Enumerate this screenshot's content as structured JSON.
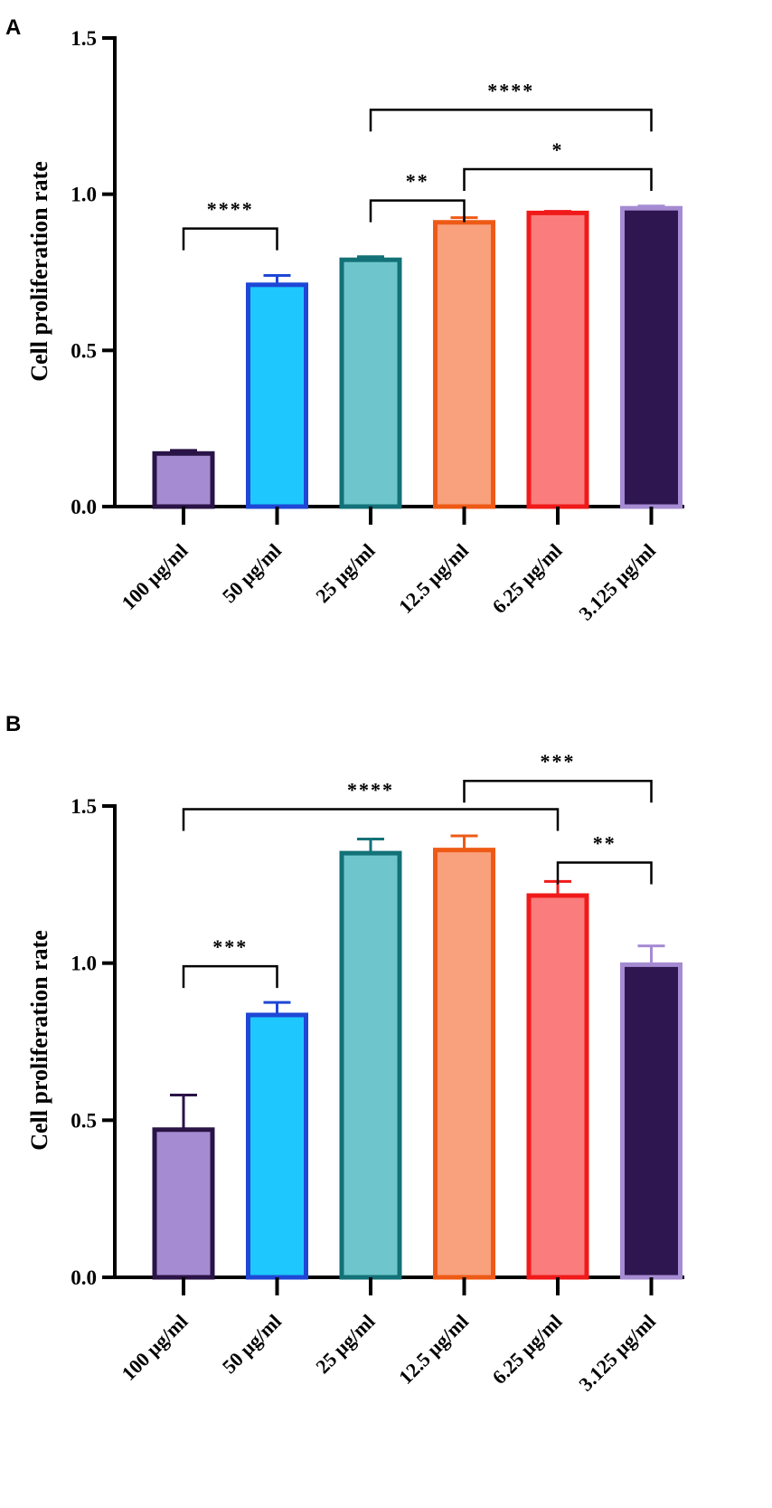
{
  "figure": {
    "panels": [
      "A",
      "B"
    ]
  },
  "chart_data": [
    {
      "panel": "A",
      "type": "bar",
      "title": "",
      "xlabel": "",
      "ylabel": "Cell proliferation rate",
      "ylim": [
        0,
        1.5
      ],
      "yticks": [
        0.0,
        0.5,
        1.0,
        1.5
      ],
      "ytick_labels": [
        "0.0",
        "0.5",
        "1.0",
        "1.5"
      ],
      "categories": [
        "100 μg/ml",
        "50 μg/ml",
        "25 μg/ml",
        "12.5 μg/ml",
        "6.25 μg/ml",
        "3.125 μg/ml"
      ],
      "values": [
        0.17,
        0.71,
        0.79,
        0.91,
        0.94,
        0.955
      ],
      "errors": [
        0.01,
        0.03,
        0.01,
        0.015,
        0.005,
        0.007
      ],
      "fill_colors": [
        "#a58bd2",
        "#1ec8ff",
        "#6ec6cc",
        "#f9a07c",
        "#fb7c7c",
        "#2e1650"
      ],
      "edge_colors": [
        "#2a1346",
        "#1f47d6",
        "#137178",
        "#ee5a16",
        "#f01a1a",
        "#a58bd2"
      ],
      "significance": [
        {
          "from": 0,
          "to": 1,
          "label": "****",
          "y": 0.89
        },
        {
          "from": 2,
          "to": 3,
          "label": "**",
          "y": 0.98
        },
        {
          "from": 3,
          "to": 5,
          "label": "*",
          "y": 1.08
        },
        {
          "from": 2,
          "to": 5,
          "label": "****",
          "y": 1.27
        }
      ]
    },
    {
      "panel": "B",
      "type": "bar",
      "title": "",
      "xlabel": "",
      "ylabel": "Cell proliferation rate",
      "ylim": [
        0,
        1.5
      ],
      "yticks": [
        0.0,
        0.5,
        1.0,
        1.5
      ],
      "ytick_labels": [
        "0.0",
        "0.5",
        "1.0",
        "1.5"
      ],
      "categories": [
        "100 μg/ml",
        "50 μg/ml",
        "25 μg/ml",
        "12.5 μg/ml",
        "6.25 μg/ml",
        "3.125 μg/ml"
      ],
      "values": [
        0.47,
        0.835,
        1.35,
        1.36,
        1.215,
        0.995
      ],
      "errors": [
        0.11,
        0.04,
        0.045,
        0.045,
        0.045,
        0.06
      ],
      "fill_colors": [
        "#a58bd2",
        "#1ec8ff",
        "#6ec6cc",
        "#f9a07c",
        "#fb7c7c",
        "#2e1650"
      ],
      "edge_colors": [
        "#2a1346",
        "#1f47d6",
        "#137178",
        "#ee5a16",
        "#f01a1a",
        "#a58bd2"
      ],
      "significance": [
        {
          "from": 0,
          "to": 1,
          "label": "***",
          "y": 0.99
        },
        {
          "from": 4,
          "to": 5,
          "label": "**",
          "y": 1.32
        },
        {
          "from": 0,
          "to": 4,
          "label": "****",
          "y": 1.49
        },
        {
          "from": 3,
          "to": 5,
          "label": "***",
          "y": 1.58
        }
      ]
    }
  ]
}
